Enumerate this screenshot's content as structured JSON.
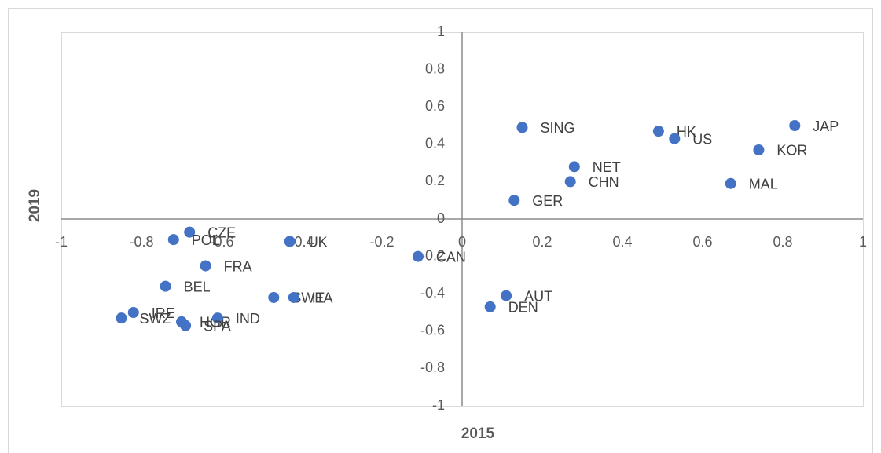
{
  "chart_data": {
    "type": "scatter",
    "xlabel": "2015",
    "ylabel": "2019",
    "series": [
      {
        "color": "#4472c4",
        "labels": [
          "SING",
          "HK",
          "US",
          "JAP",
          "KOR",
          "NET",
          "CHN",
          "MAL",
          "GER",
          "CZE",
          "POL",
          "UK",
          "CAN",
          "FRA",
          "BEL",
          "SWE",
          "ITA",
          "AUT",
          "DEN",
          "IRE",
          "SWZ",
          "HGR",
          "IND",
          "SPA"
        ],
        "x": [
          0.15,
          0.49,
          0.53,
          0.83,
          0.74,
          0.28,
          0.27,
          0.67,
          0.13,
          -0.68,
          -0.72,
          -0.43,
          -0.11,
          -0.64,
          -0.74,
          -0.47,
          -0.42,
          0.11,
          0.07,
          -0.82,
          -0.85,
          -0.7,
          -0.61,
          -0.69
        ],
        "values": [
          0.49,
          0.47,
          0.43,
          0.5,
          0.37,
          0.28,
          0.2,
          0.19,
          0.1,
          -0.07,
          -0.11,
          -0.12,
          -0.2,
          -0.25,
          -0.36,
          -0.42,
          -0.42,
          -0.41,
          -0.47,
          -0.5,
          -0.53,
          -0.55,
          -0.53,
          -0.57
        ]
      }
    ],
    "xlim": [
      -1,
      1
    ],
    "xticks": [
      -1,
      -0.8,
      -0.6,
      -0.4,
      -0.2,
      0,
      0.2,
      0.4,
      0.6,
      0.8,
      1
    ],
    "ylim": [
      -1,
      1
    ],
    "yticks": [
      -1,
      -0.8,
      -0.6,
      -0.4,
      -0.2,
      0,
      0.2,
      0.4,
      0.6,
      0.8,
      1
    ]
  }
}
